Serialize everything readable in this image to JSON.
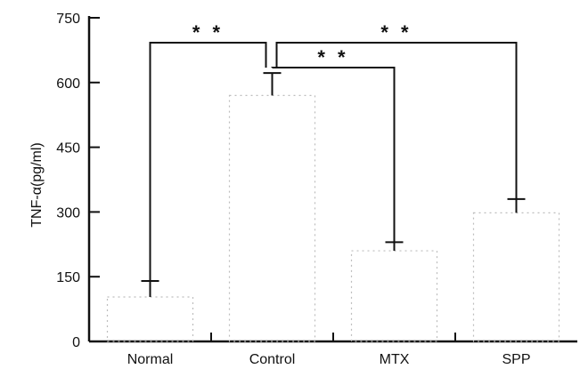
{
  "chart_data": {
    "type": "bar",
    "title": "",
    "xlabel": "",
    "ylabel": "TNF-α(pg/ml)",
    "ylim": [
      0,
      750
    ],
    "yticks": [
      0,
      150,
      300,
      450,
      600,
      750
    ],
    "ytick_labels": [
      "0",
      "150",
      "300",
      "450",
      "600",
      "750"
    ],
    "categories": [
      "Normal",
      "Control",
      "MTX",
      "SPP"
    ],
    "values": [
      103,
      570,
      210,
      298
    ],
    "errors": [
      37,
      52,
      20,
      32
    ],
    "significance": [
      {
        "from": "Normal",
        "to": "Control",
        "label": "* *"
      },
      {
        "from": "Control",
        "to": "MTX",
        "label": "* *"
      },
      {
        "from": "Control",
        "to": "SPP",
        "label": "* *"
      }
    ],
    "grid": false
  }
}
